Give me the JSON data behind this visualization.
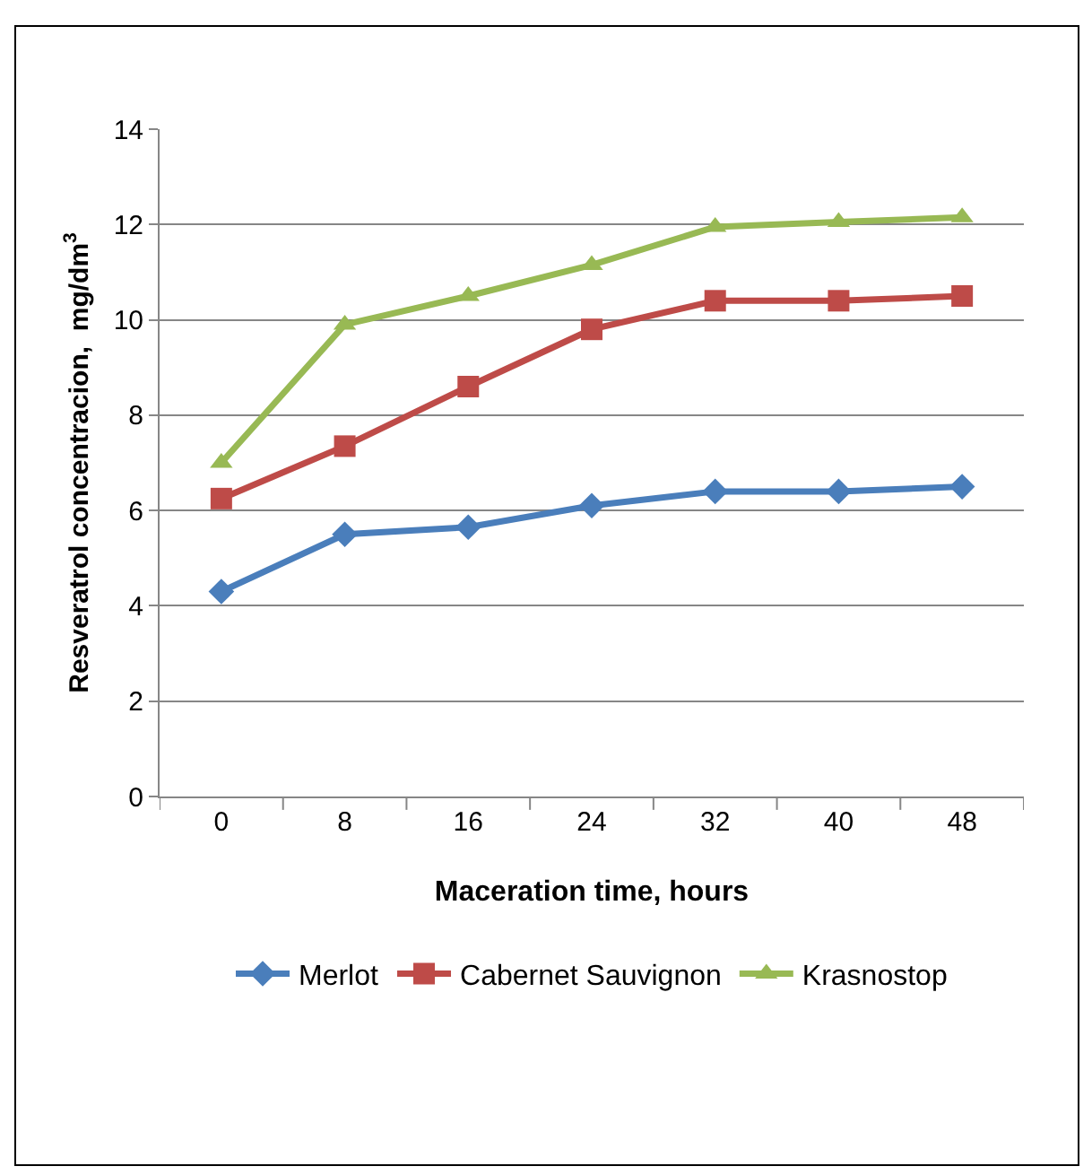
{
  "chart_data": {
    "type": "line",
    "xlabel": "Maceration time, hours",
    "ylabel": "Resveratrol concentracion,  mg/dm$^{3}$",
    "categories": [
      "0",
      "8",
      "16",
      "24",
      "32",
      "40",
      "48"
    ],
    "series": [
      {
        "name": "Merlot",
        "color": "#4a7ebb",
        "marker": "diamond",
        "values": [
          4.3,
          5.5,
          5.65,
          6.1,
          6.4,
          6.4,
          6.5
        ]
      },
      {
        "name": "Cabernet Sauvignon",
        "color": "#be4b48",
        "marker": "square",
        "values": [
          6.25,
          7.35,
          8.6,
          9.8,
          10.4,
          10.4,
          10.5
        ]
      },
      {
        "name": "Krasnostop",
        "color": "#98b954",
        "marker": "triangle",
        "values": [
          7.0,
          9.9,
          10.5,
          11.15,
          11.95,
          12.05,
          12.15
        ]
      }
    ],
    "ylim": [
      0,
      14
    ],
    "yticks": [
      0,
      2,
      4,
      6,
      8,
      10,
      12,
      14
    ],
    "grid": "y",
    "legend": "bottom",
    "line_style": "solid"
  }
}
